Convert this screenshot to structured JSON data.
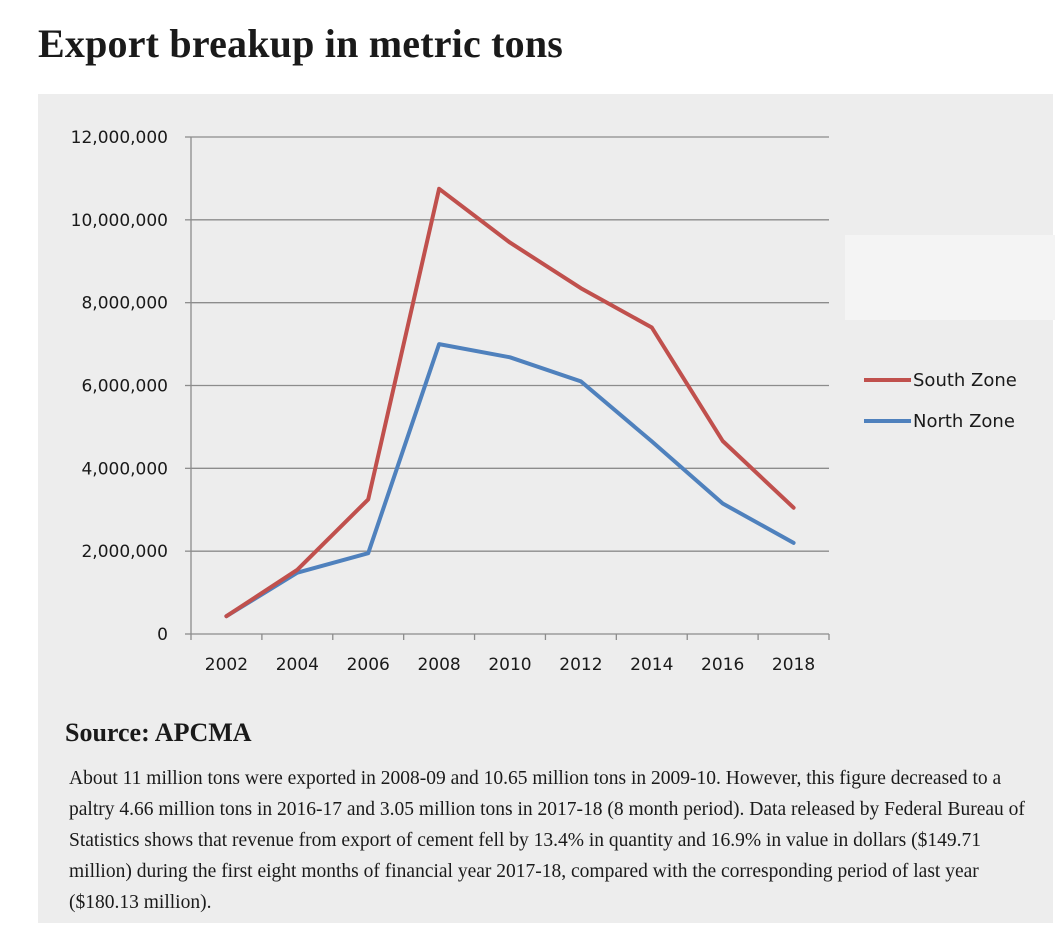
{
  "title": "Export breakup in metric tons",
  "source": "Source: APCMA",
  "description": "About 11 million tons were exported in 2008-09 and 10.65 million tons in 2009-10. However, this figure decreased to a paltry 4.66 million tons in 2016-17 and 3.05 million tons in 2017-18 (8 month period). Data released by Federal Bureau of Statistics shows that revenue from export of cement fell by 13.4% in quantity and 16.9% in value in dollars ($149.71 million) during the first eight months of financial year 2017-18, compared with the corresponding period of last year ($180.13 million).",
  "chart_data": {
    "type": "line",
    "title": "Export breakup in metric tons",
    "xlabel": "",
    "ylabel": "",
    "x_ticks": [
      "2002",
      "2004",
      "2006",
      "2008",
      "2010",
      "2012",
      "2014",
      "2016",
      "2018"
    ],
    "y_ticks": [
      "0",
      "2,000,000",
      "4,000,000",
      "6,000,000",
      "8,000,000",
      "10,000,000",
      "12,000,000"
    ],
    "xlim": [
      2001,
      2019
    ],
    "ylim": [
      0,
      12000000
    ],
    "grid": true,
    "legend_position": "right",
    "series": [
      {
        "name": "South Zone",
        "color": "#c0504d",
        "x": [
          2002,
          2004,
          2006,
          2008,
          2010,
          2012,
          2014,
          2016,
          2018
        ],
        "y": [
          430000,
          1550000,
          3250000,
          10750000,
          9450000,
          8350000,
          7400000,
          4660000,
          3050000
        ]
      },
      {
        "name": "North Zone",
        "color": "#4f81bd",
        "x": [
          2002,
          2004,
          2006,
          2008,
          2010,
          2012,
          2014,
          2016,
          2018
        ],
        "y": [
          430000,
          1480000,
          1950000,
          7000000,
          6680000,
          6100000,
          4650000,
          3150000,
          2200000
        ]
      }
    ]
  }
}
